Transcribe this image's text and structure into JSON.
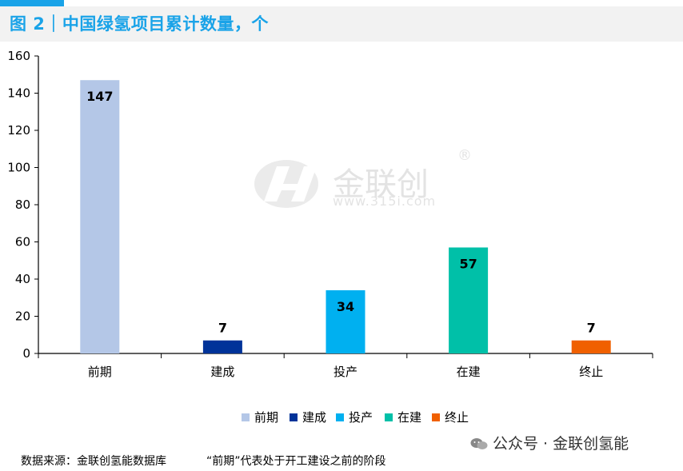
{
  "header": {
    "title": "图 2｜中国绿氢项目累计数量，个"
  },
  "chart_data": {
    "type": "bar",
    "title": "中国绿氢项目累计数量，个",
    "categories": [
      "前期",
      "建成",
      "投产",
      "在建",
      "终止"
    ],
    "values": [
      147,
      7,
      34,
      57,
      7
    ],
    "colors": [
      "#b4c7e7",
      "#003399",
      "#00b0f0",
      "#00c0a8",
      "#f06000"
    ],
    "ylim": [
      0,
      160
    ],
    "yticks": [
      0,
      20,
      40,
      60,
      80,
      100,
      120,
      140,
      160
    ],
    "xlabel": "",
    "ylabel": "",
    "grid": false,
    "legend": "bottom",
    "legend_entries": [
      "前期",
      "建成",
      "投产",
      "在建",
      "终止"
    ]
  },
  "footer": {
    "source": "数据来源：金联创氢能数据库",
    "note": "“前期”代表处于开工建设之前的阶段",
    "wechat": "公众号 · 金联创氢能"
  },
  "watermark": {
    "name": "金联创",
    "url": "www.315i.com",
    "reg": "®"
  }
}
